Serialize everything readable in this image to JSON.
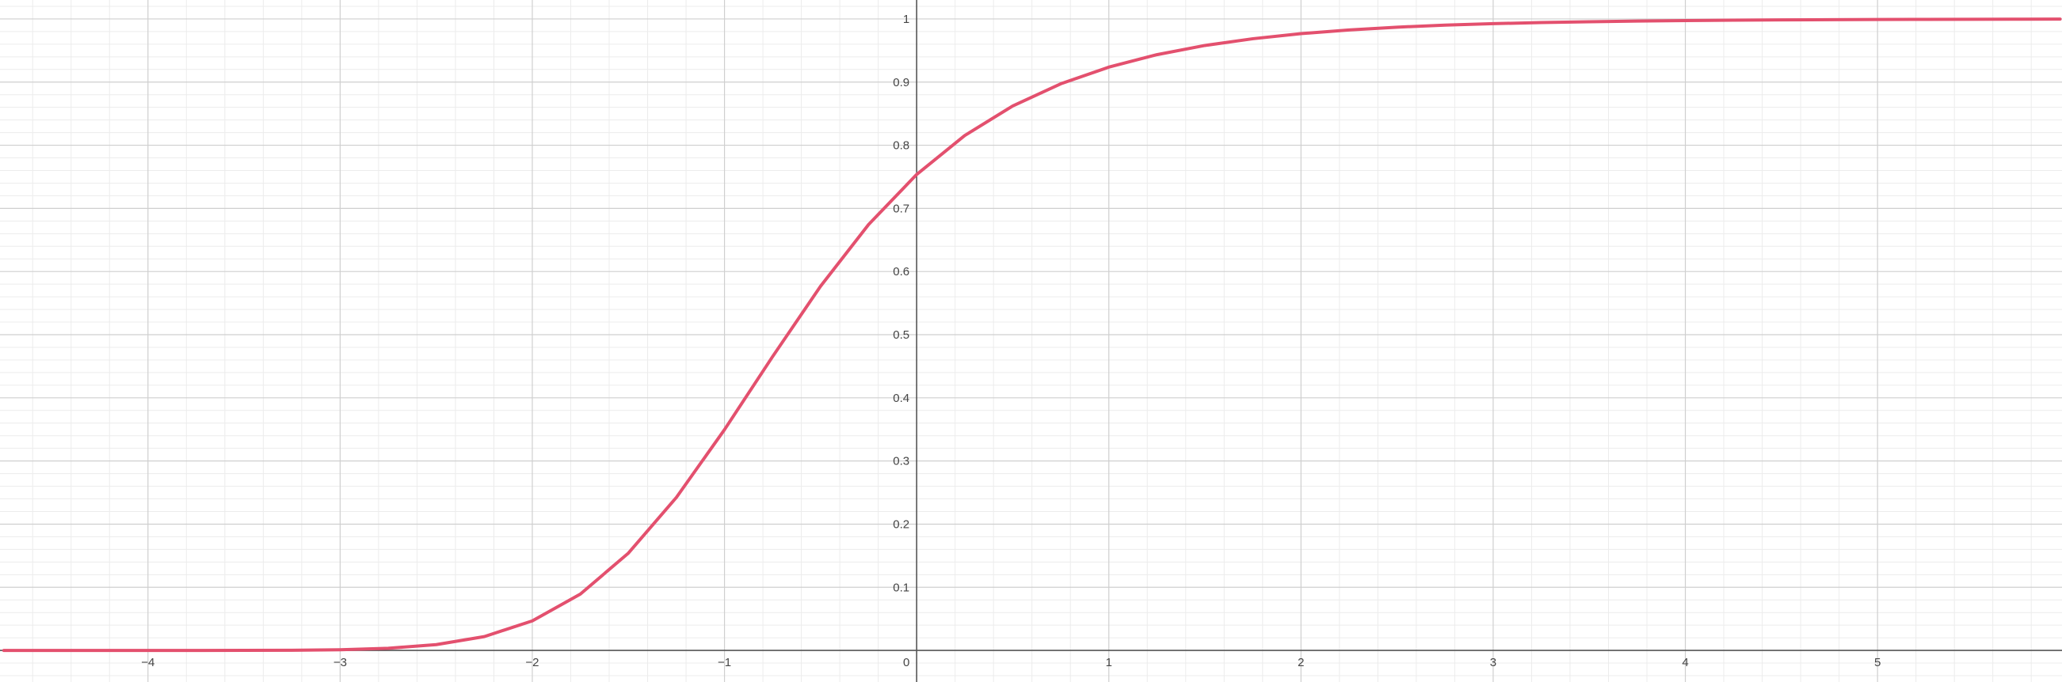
{
  "chart_data": {
    "type": "line",
    "title": "",
    "xlabel": "",
    "ylabel": "",
    "xlim": [
      -4.77,
      5.96
    ],
    "ylim": [
      -0.05,
      1.03
    ],
    "grid": true,
    "x_ticks": [
      {
        "value": -4,
        "label": "−4"
      },
      {
        "value": -3,
        "label": "−3"
      },
      {
        "value": -2,
        "label": "−2"
      },
      {
        "value": -1,
        "label": "−1"
      },
      {
        "value": 0,
        "label": "0"
      },
      {
        "value": 1,
        "label": "1"
      },
      {
        "value": 2,
        "label": "2"
      },
      {
        "value": 3,
        "label": "3"
      },
      {
        "value": 4,
        "label": "4"
      },
      {
        "value": 5,
        "label": "5"
      }
    ],
    "y_ticks": [
      {
        "value": 0.1,
        "label": "0.1"
      },
      {
        "value": 0.2,
        "label": "0.2"
      },
      {
        "value": 0.3,
        "label": "0.3"
      },
      {
        "value": 0.4,
        "label": "0.4"
      },
      {
        "value": 0.5,
        "label": "0.5"
      },
      {
        "value": 0.6,
        "label": "0.6"
      },
      {
        "value": 0.7,
        "label": "0.7"
      },
      {
        "value": 0.8,
        "label": "0.8"
      },
      {
        "value": 0.9,
        "label": "0.9"
      },
      {
        "value": 1,
        "label": "1"
      }
    ],
    "series": [
      {
        "color": "#e3506e",
        "x": [
          -4.75,
          -4.5,
          -4.25,
          -4,
          -3.75,
          -3.5,
          -3.25,
          -3,
          -2.75,
          -2.5,
          -2.25,
          -2,
          -1.75,
          -1.5,
          -1.25,
          -1,
          -0.75,
          -0.5,
          -0.25,
          0,
          0.25,
          0.5,
          0.75,
          1,
          1.25,
          1.5,
          1.75,
          2,
          2.25,
          2.5,
          2.75,
          3,
          3.25,
          3.5,
          3.75,
          4,
          4.25,
          4.5,
          4.75,
          5,
          5.25,
          5.5,
          5.75,
          5.95
        ],
        "y": [
          0,
          0,
          0,
          0,
          0,
          0.0001,
          0.0003,
          0.0011,
          0.0034,
          0.0092,
          0.0219,
          0.0468,
          0.0892,
          0.1541,
          0.2424,
          0.3496,
          0.4652,
          0.5768,
          0.6745,
          0.7537,
          0.8154,
          0.8622,
          0.8973,
          0.9237,
          0.9434,
          0.958,
          0.9687,
          0.9767,
          0.9826,
          0.987,
          0.9902,
          0.9925,
          0.9943,
          0.9956,
          0.9966,
          0.9974,
          0.998,
          0.9985,
          0.9988,
          0.9991,
          0.9993,
          0.9995,
          0.9996,
          0.9997
        ]
      }
    ],
    "colors": {
      "curve": "#e3506e",
      "axis": "#555555",
      "major_grid": "#cfcfcf",
      "minor_grid": "#ececec",
      "tick_label": "#444444"
    }
  }
}
